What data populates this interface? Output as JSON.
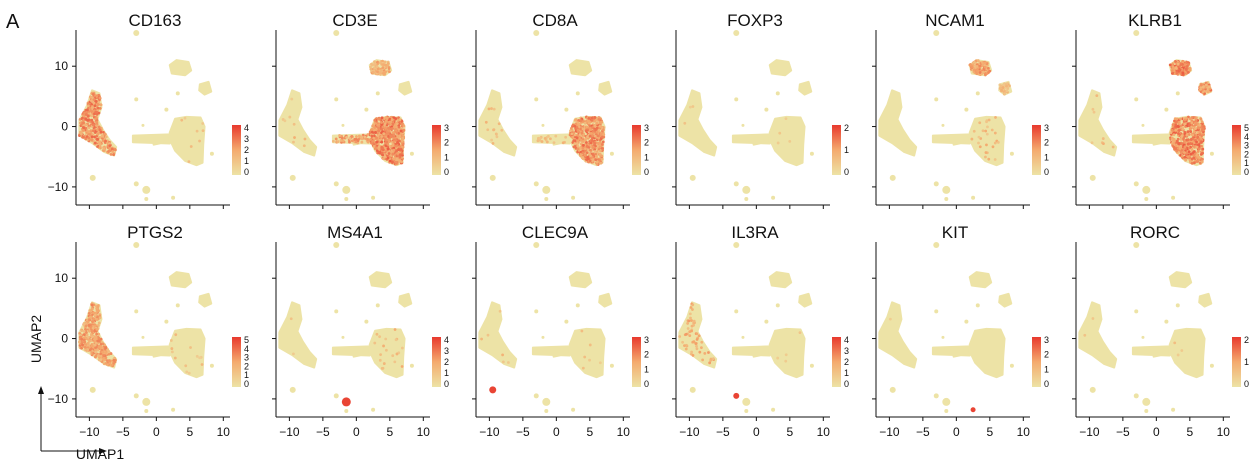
{
  "chart_data": {
    "type": "scatter",
    "panel_label": "A",
    "xlabel": "UMAP1",
    "ylabel": "UMAP2",
    "xlim": [
      -12,
      11
    ],
    "ylim": [
      -13,
      16
    ],
    "xticks": [
      -10,
      -5,
      0,
      5,
      10
    ],
    "yticks": [
      10,
      0,
      -10
    ],
    "xtick_labels": [
      "−10",
      "−5",
      "0",
      "5",
      "10"
    ],
    "ytick_labels": [
      "10",
      "0",
      "−10"
    ],
    "colormap": {
      "low": "#EDE3A6",
      "mid": "#F4AA6E",
      "high": "#E8392E"
    },
    "panels": [
      {
        "gene": "CD163",
        "hot": "monocyte",
        "intensity": 0.8,
        "max": 4
      },
      {
        "gene": "CD3E",
        "hot": "tcell",
        "intensity": 0.85,
        "max": 3
      },
      {
        "gene": "CD8A",
        "hot": "tcell_partial",
        "intensity": 0.8,
        "max": 3
      },
      {
        "gene": "FOXP3",
        "hot": "sparse",
        "intensity": 0.3,
        "max": 2
      },
      {
        "gene": "NCAM1",
        "hot": "nk",
        "intensity": 0.7,
        "max": 3
      },
      {
        "gene": "KLRB1",
        "hot": "tcell_nk",
        "intensity": 0.85,
        "max": 5
      },
      {
        "gene": "PTGS2",
        "hot": "monocyte",
        "intensity": 0.7,
        "max": 5
      },
      {
        "gene": "MS4A1",
        "hot": "bcell",
        "intensity": 0.85,
        "max": 4
      },
      {
        "gene": "CLEC9A",
        "hot": "cdc",
        "intensity": 0.6,
        "max": 3
      },
      {
        "gene": "IL3RA",
        "hot": "pdc",
        "intensity": 0.6,
        "max": 4
      },
      {
        "gene": "KIT",
        "hot": "mast",
        "intensity": 0.6,
        "max": 3
      },
      {
        "gene": "RORC",
        "hot": "sparse",
        "intensity": 0.2,
        "max": 2
      }
    ]
  }
}
